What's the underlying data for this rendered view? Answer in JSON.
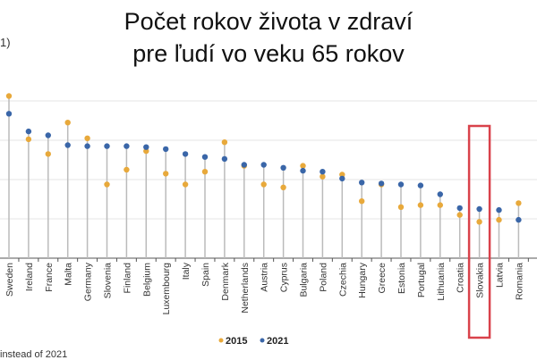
{
  "title_lines": [
    "Počet rokov života v zdraví",
    "pre ľudí vo veku 65 rokov"
  ],
  "note_top": "1)",
  "note_bottom": "instead of 2021",
  "highlight": {
    "country": "Slovakia",
    "color": "#d9424b"
  },
  "chart_data": {
    "type": "scatter",
    "subtype": "dumbbell/lollipop",
    "ylim": [
      0,
      17
    ],
    "grid": true,
    "legend_placement": "bottom-center",
    "categories": [
      "Sweden",
      "Ireland",
      "France",
      "Malta",
      "Germany",
      "Slovenia",
      "Finland",
      "Belgium",
      "Luxembourg",
      "Italy",
      "Spain",
      "Denmark",
      "Netherlands",
      "Austria",
      "Cyprus",
      "Bulgaria",
      "Poland",
      "Czechia",
      "Hungary",
      "Greece",
      "Estonia",
      "Portugal",
      "Lithuania",
      "Croatia",
      "Slovakia",
      "Latvia",
      "Romania"
    ],
    "series": [
      {
        "name": "2015",
        "color": "#e8a93b",
        "values": [
          16.5,
          12.1,
          10.6,
          13.8,
          12.2,
          7.5,
          9.0,
          10.9,
          8.6,
          7.5,
          8.8,
          11.8,
          9.4,
          7.5,
          7.2,
          9.4,
          8.3,
          8.5,
          5.8,
          7.5,
          5.2,
          5.4,
          5.4,
          4.4,
          3.7,
          3.9,
          5.6
        ]
      },
      {
        "name": "2021",
        "color": "#3a66a8",
        "values": [
          14.7,
          12.9,
          12.5,
          11.5,
          11.4,
          11.4,
          11.4,
          11.3,
          11.1,
          10.6,
          10.3,
          10.1,
          9.5,
          9.5,
          9.2,
          8.9,
          8.8,
          8.1,
          7.7,
          7.6,
          7.5,
          7.4,
          6.5,
          5.1,
          5.0,
          4.9,
          3.9
        ]
      }
    ]
  }
}
